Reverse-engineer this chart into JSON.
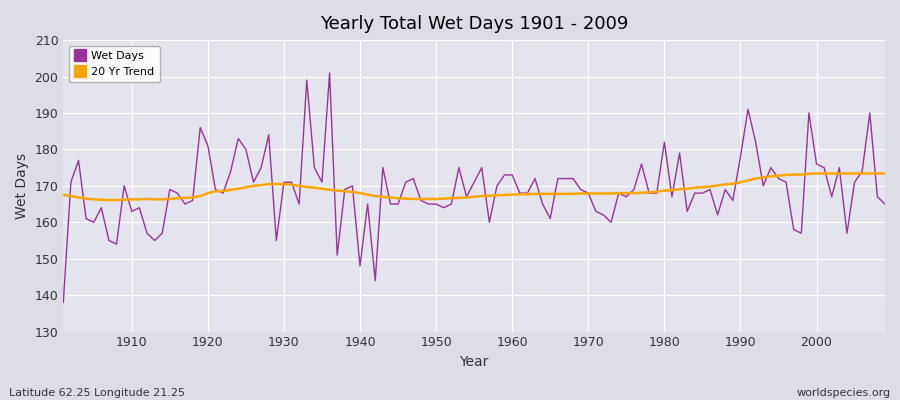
{
  "title": "Yearly Total Wet Days 1901 - 2009",
  "xlabel": "Year",
  "ylabel": "Wet Days",
  "subtitle": "Latitude 62.25 Longitude 21.25",
  "watermark": "worldspecies.org",
  "ylim": [
    130,
    210
  ],
  "yticks": [
    130,
    140,
    150,
    160,
    170,
    180,
    190,
    200,
    210
  ],
  "xticks": [
    1910,
    1920,
    1930,
    1940,
    1950,
    1960,
    1970,
    1980,
    1990,
    2000
  ],
  "wet_days_color": "#993399",
  "trend_color": "#FFA500",
  "bg_color": "#DDDDE8",
  "plot_bg_color": "#E4E4EE",
  "years": [
    1901,
    1902,
    1903,
    1904,
    1905,
    1906,
    1907,
    1908,
    1909,
    1910,
    1911,
    1912,
    1913,
    1914,
    1915,
    1916,
    1917,
    1918,
    1919,
    1920,
    1921,
    1922,
    1923,
    1924,
    1925,
    1926,
    1927,
    1928,
    1929,
    1930,
    1931,
    1932,
    1933,
    1934,
    1935,
    1936,
    1937,
    1938,
    1939,
    1940,
    1941,
    1942,
    1943,
    1944,
    1945,
    1946,
    1947,
    1948,
    1949,
    1950,
    1951,
    1952,
    1953,
    1954,
    1955,
    1956,
    1957,
    1958,
    1959,
    1960,
    1961,
    1962,
    1963,
    1964,
    1965,
    1966,
    1967,
    1968,
    1969,
    1970,
    1971,
    1972,
    1973,
    1974,
    1975,
    1976,
    1977,
    1978,
    1979,
    1980,
    1981,
    1982,
    1983,
    1984,
    1985,
    1986,
    1987,
    1988,
    1989,
    1990,
    1991,
    1992,
    1993,
    1994,
    1995,
    1996,
    1997,
    1998,
    1999,
    2000,
    2001,
    2002,
    2003,
    2004,
    2005,
    2006,
    2007,
    2008,
    2009
  ],
  "wet_days": [
    138,
    171,
    177,
    161,
    160,
    164,
    155,
    154,
    170,
    163,
    164,
    157,
    155,
    157,
    169,
    168,
    165,
    166,
    186,
    181,
    169,
    168,
    174,
    183,
    180,
    171,
    175,
    184,
    155,
    171,
    171,
    165,
    199,
    175,
    171,
    201,
    151,
    169,
    170,
    148,
    165,
    144,
    175,
    165,
    165,
    171,
    172,
    166,
    165,
    165,
    164,
    165,
    175,
    167,
    171,
    175,
    160,
    170,
    173,
    173,
    168,
    168,
    172,
    165,
    161,
    172,
    172,
    172,
    169,
    168,
    163,
    162,
    160,
    168,
    167,
    169,
    176,
    168,
    168,
    182,
    167,
    179,
    163,
    168,
    168,
    169,
    162,
    169,
    166,
    178,
    191,
    182,
    170,
    175,
    172,
    171,
    158,
    157,
    190,
    176,
    175,
    167,
    175,
    157,
    171,
    174,
    190,
    167,
    165
  ],
  "trend": [
    167.5,
    167.2,
    166.8,
    166.5,
    166.3,
    166.2,
    166.1,
    166.1,
    166.2,
    166.3,
    166.3,
    166.4,
    166.3,
    166.3,
    166.4,
    166.6,
    166.7,
    166.8,
    167.2,
    168.0,
    168.5,
    168.6,
    168.9,
    169.2,
    169.6,
    170.0,
    170.2,
    170.5,
    170.5,
    170.5,
    170.3,
    170.0,
    169.7,
    169.5,
    169.2,
    168.9,
    168.7,
    168.5,
    168.3,
    168.0,
    167.6,
    167.2,
    167.0,
    166.8,
    166.6,
    166.5,
    166.4,
    166.4,
    166.4,
    166.4,
    166.5,
    166.6,
    166.7,
    166.8,
    167.0,
    167.2,
    167.3,
    167.4,
    167.5,
    167.6,
    167.7,
    167.7,
    167.8,
    167.8,
    167.8,
    167.8,
    167.8,
    167.8,
    167.9,
    167.9,
    167.9,
    167.9,
    167.9,
    168.0,
    168.0,
    168.0,
    168.1,
    168.2,
    168.4,
    168.7,
    168.8,
    169.1,
    169.2,
    169.5,
    169.6,
    169.8,
    170.1,
    170.4,
    170.6,
    171.0,
    171.5,
    172.0,
    172.3,
    172.6,
    172.8,
    173.0,
    173.1,
    173.1,
    173.3,
    173.4,
    173.4,
    173.4,
    173.4,
    173.4,
    173.4,
    173.4,
    173.4,
    173.4,
    173.4
  ]
}
